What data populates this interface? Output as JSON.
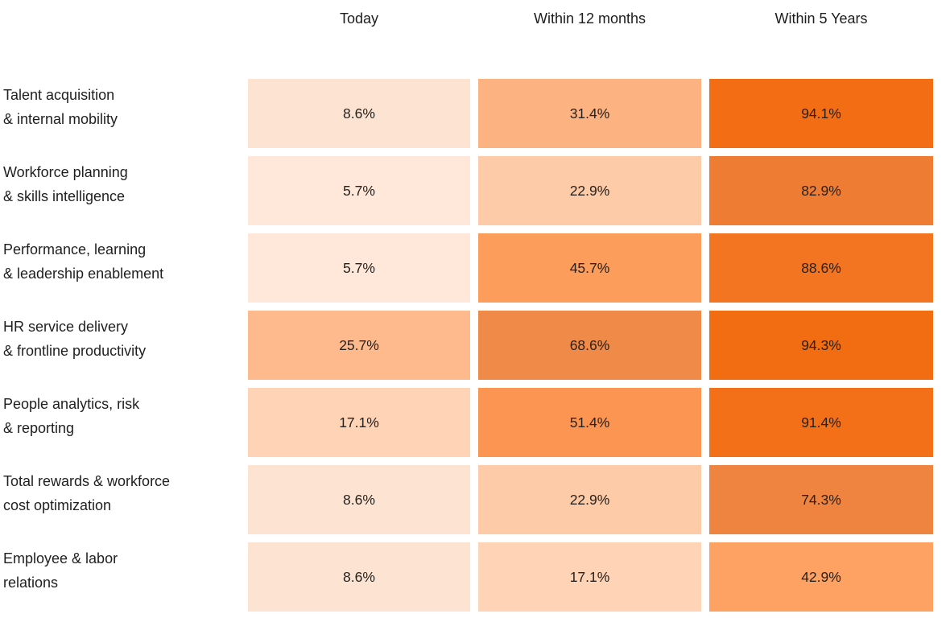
{
  "chart_data": {
    "type": "heatmap",
    "title": "",
    "columns": [
      "Today",
      "Within 12 months",
      "Within 5 Years"
    ],
    "value_format": "percent",
    "text_color": "#26221f",
    "colorscale": {
      "low": "#ffe8da",
      "high": "#f26c12"
    },
    "rows": [
      {
        "label": "Talent acquisition\n& internal mobility",
        "values": [
          8.6,
          31.4,
          94.1
        ],
        "cells": [
          {
            "text": "8.6%",
            "color": "#fde4d2"
          },
          {
            "text": "31.4%",
            "color": "#fdb282"
          },
          {
            "text": "94.1%",
            "color": "#f36d15"
          }
        ]
      },
      {
        "label": "Workforce planning\n& skills intelligence",
        "values": [
          5.7,
          22.9,
          82.9
        ],
        "cells": [
          {
            "text": "5.7%",
            "color": "#ffe8da"
          },
          {
            "text": "22.9%",
            "color": "#fdcba7"
          },
          {
            "text": "82.9%",
            "color": "#ee7d33"
          }
        ]
      },
      {
        "label": "Performance, learning\n& leadership enablement",
        "values": [
          5.7,
          45.7,
          88.6
        ],
        "cells": [
          {
            "text": "5.7%",
            "color": "#ffe8da"
          },
          {
            "text": "45.7%",
            "color": "#fc9d5c"
          },
          {
            "text": "88.6%",
            "color": "#f37421"
          }
        ]
      },
      {
        "label": "HR service delivery\n& frontline productivity",
        "values": [
          25.7,
          68.6,
          94.3
        ],
        "cells": [
          {
            "text": "25.7%",
            "color": "#feba8d"
          },
          {
            "text": "68.6%",
            "color": "#f08a48"
          },
          {
            "text": "94.3%",
            "color": "#f26c12"
          }
        ]
      },
      {
        "label": "People analytics, risk\n& reporting",
        "values": [
          17.1,
          51.4,
          91.4
        ],
        "cells": [
          {
            "text": "17.1%",
            "color": "#fed3b6"
          },
          {
            "text": "51.4%",
            "color": "#fc9551"
          },
          {
            "text": "91.4%",
            "color": "#f37019"
          }
        ]
      },
      {
        "label": "Total rewards & workforce\ncost optimization",
        "values": [
          8.6,
          22.9,
          74.3
        ],
        "cells": [
          {
            "text": "8.6%",
            "color": "#fde4d2"
          },
          {
            "text": "22.9%",
            "color": "#fdcba7"
          },
          {
            "text": "74.3%",
            "color": "#ef8340"
          }
        ]
      },
      {
        "label": "Employee & labor\nrelations",
        "values": [
          8.6,
          17.1,
          42.9
        ],
        "cells": [
          {
            "text": "8.6%",
            "color": "#fde4d2"
          },
          {
            "text": "17.1%",
            "color": "#fed3b6"
          },
          {
            "text": "42.9%",
            "color": "#fda263"
          }
        ]
      }
    ]
  }
}
